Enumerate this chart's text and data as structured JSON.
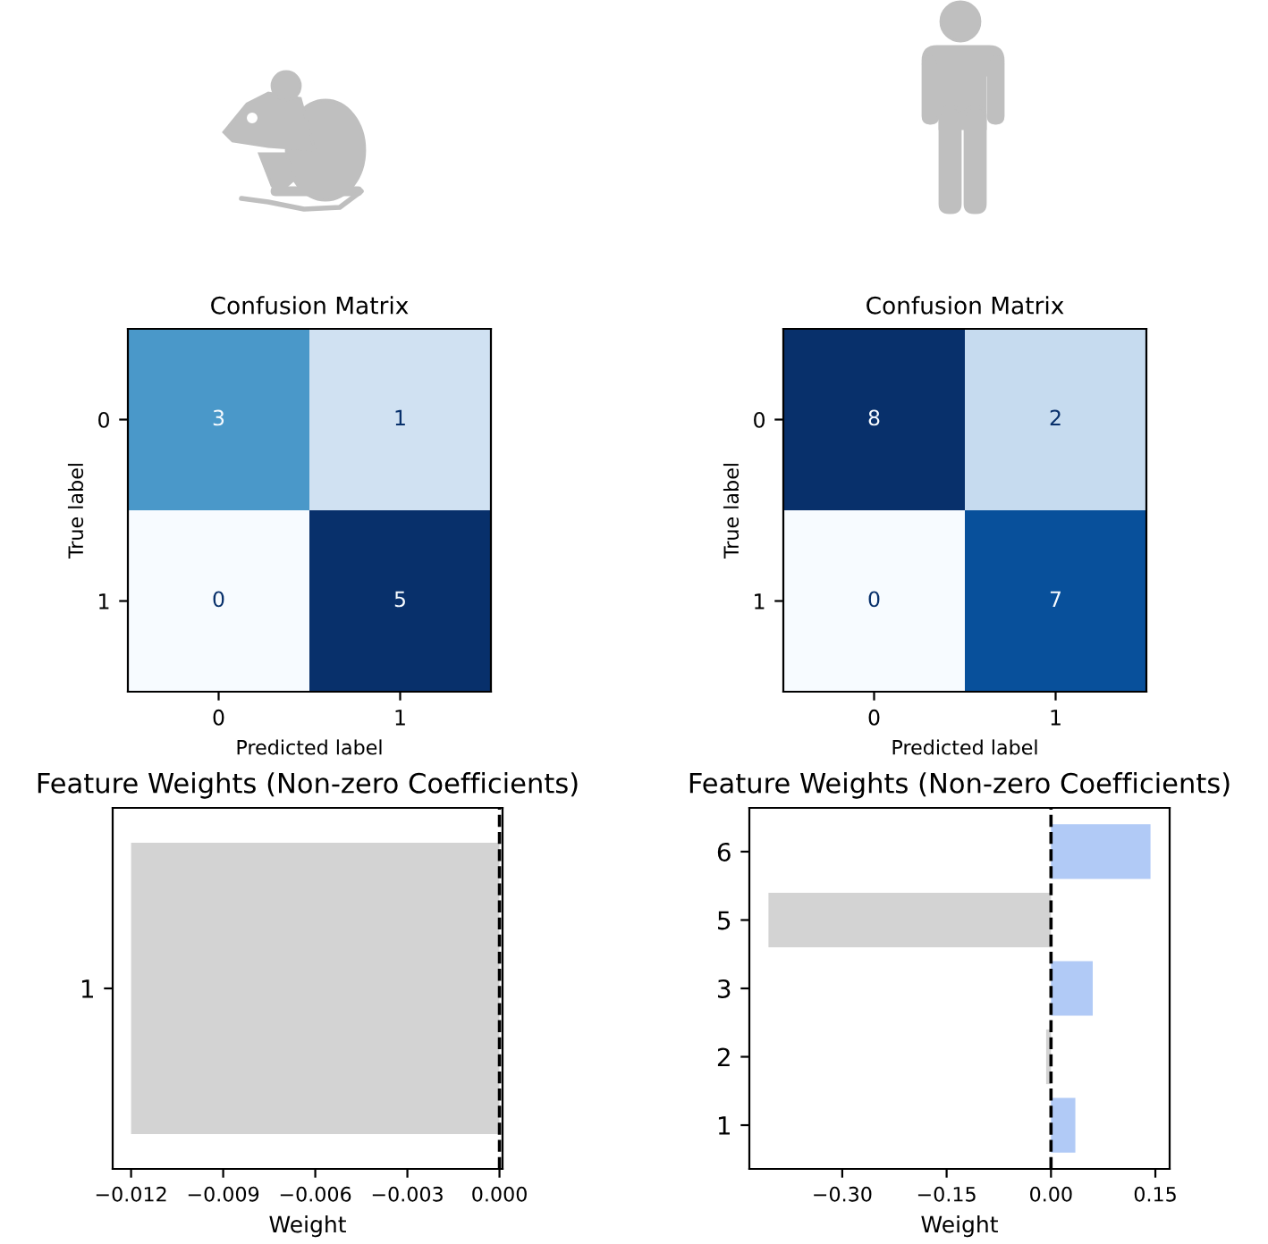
{
  "chart_data": [
    {
      "type": "heatmap",
      "title": "Confusion Matrix",
      "xlabel": "Predicted label",
      "ylabel": "True label",
      "categories": [
        "0",
        "1"
      ],
      "y_categories": [
        "0",
        "1"
      ],
      "cells": [
        [
          3,
          1
        ],
        [
          0,
          5
        ]
      ],
      "data_labels": true
    },
    {
      "type": "heatmap",
      "title": "Confusion Matrix",
      "xlabel": "Predicted label",
      "ylabel": "True label",
      "categories": [
        "0",
        "1"
      ],
      "y_categories": [
        "0",
        "1"
      ],
      "cells": [
        [
          8,
          2
        ],
        [
          0,
          7
        ]
      ],
      "data_labels": true
    },
    {
      "type": "bar",
      "orientation": "horizontal",
      "title": "Feature Weights (Non-zero Coefficients)",
      "xlabel": "Weight",
      "categories": [
        "1"
      ],
      "values": [
        -0.012
      ],
      "colors": [
        "#d3d3d3"
      ],
      "xlim": [
        -0.0126,
        0.0001
      ],
      "xticks": [
        {
          "value": -0.012,
          "label": "−0.012"
        },
        {
          "value": -0.009,
          "label": "−0.009"
        },
        {
          "value": -0.006,
          "label": "−0.006"
        },
        {
          "value": -0.003,
          "label": "−0.003"
        },
        {
          "value": 0.0,
          "label": "0.000"
        }
      ],
      "ref_lines": [
        {
          "axis": "x",
          "value": 0,
          "color": "#000000",
          "line_style": "dashed"
        }
      ]
    },
    {
      "type": "bar",
      "orientation": "horizontal",
      "title": "Feature Weights (Non-zero Coefficients)",
      "xlabel": "Weight",
      "categories": [
        "6",
        "5",
        "3",
        "2",
        "1"
      ],
      "values": [
        0.143,
        -0.406,
        0.06,
        -0.007,
        0.035
      ],
      "colors": [
        "#b1caf6",
        "#d3d3d3",
        "#b1caf6",
        "#d3d3d3",
        "#b1caf6"
      ],
      "xlim": [
        -0.4335,
        0.1705
      ],
      "xticks": [
        {
          "value": -0.3,
          "label": "−0.30"
        },
        {
          "value": -0.15,
          "label": "−0.15"
        },
        {
          "value": 0.0,
          "label": "0.00"
        },
        {
          "value": 0.15,
          "label": "0.15"
        }
      ],
      "ref_lines": [
        {
          "axis": "x",
          "value": 0,
          "color": "#000000",
          "line_style": "dashed"
        }
      ]
    }
  ]
}
